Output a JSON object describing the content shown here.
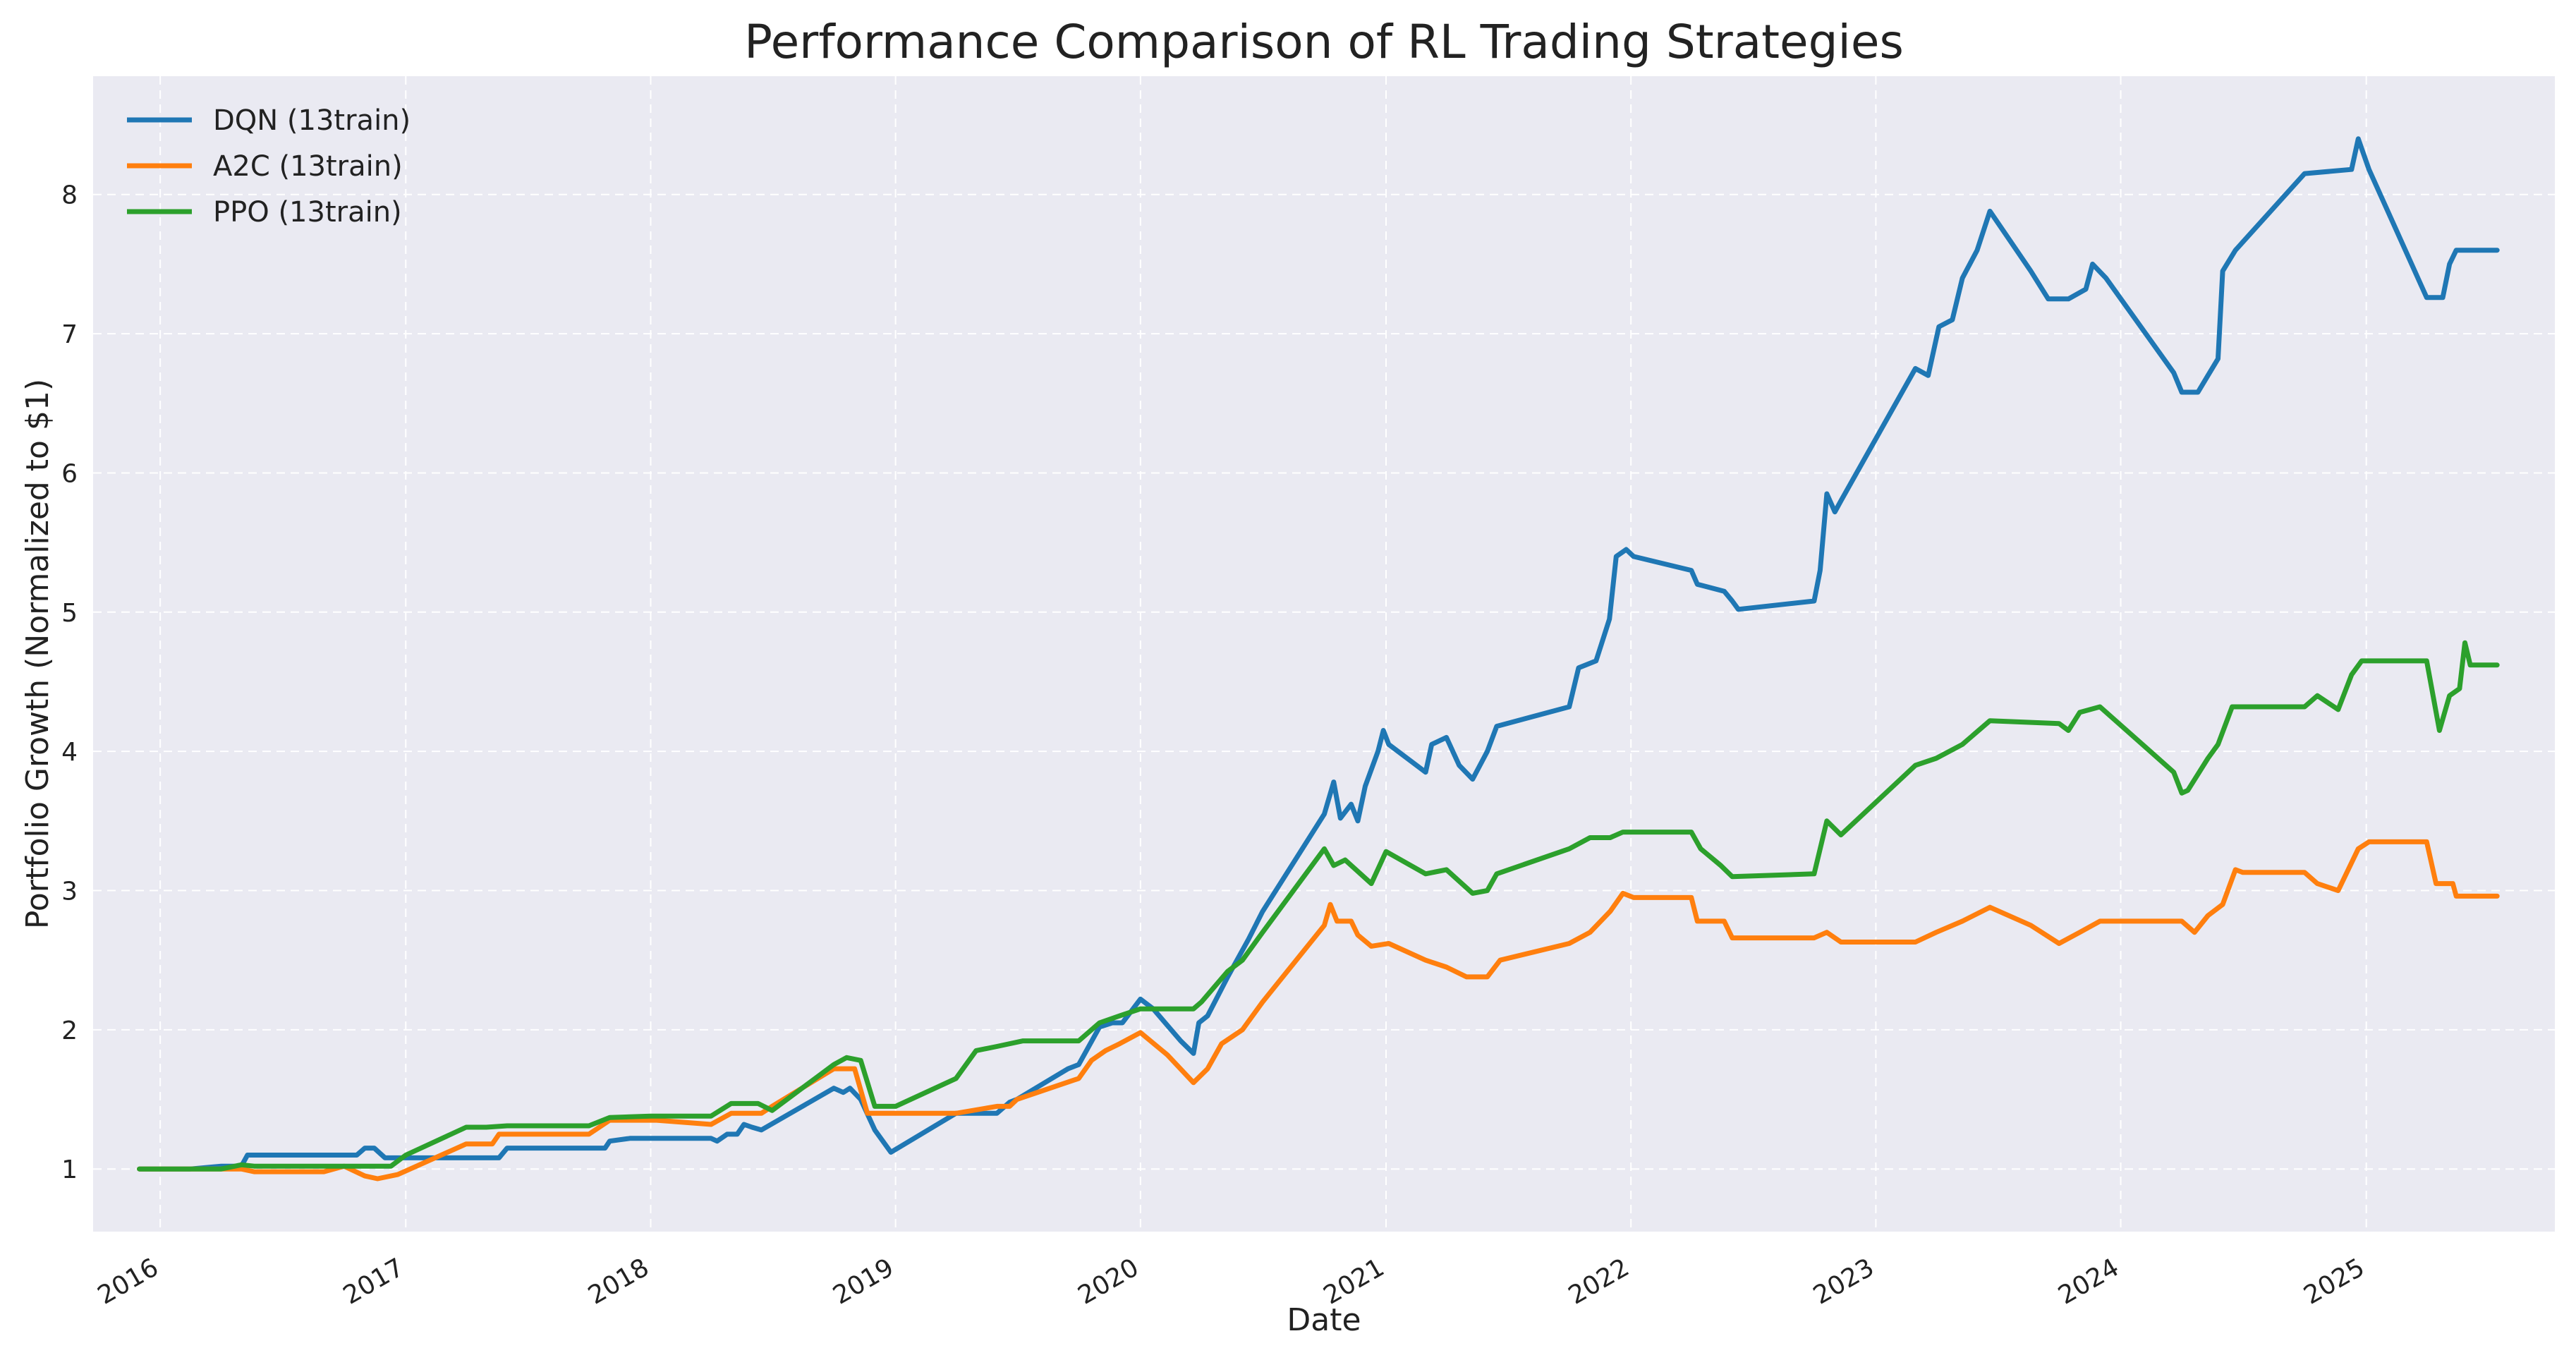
{
  "chart_data": {
    "type": "line",
    "title": "Performance Comparison of RL Trading Strategies",
    "xlabel": "Date",
    "ylabel": "Portfolio Growth (Normalized to $1)",
    "xlim": [
      "2015-09-23",
      "2025-10-09"
    ],
    "ylim": [
      0.55,
      8.85
    ],
    "x_ticks": [
      "2016",
      "2017",
      "2018",
      "2019",
      "2020",
      "2021",
      "2022",
      "2023",
      "2024",
      "2025"
    ],
    "y_ticks": [
      1,
      2,
      3,
      4,
      5,
      6,
      7,
      8
    ],
    "grid": true,
    "legend": "top-left",
    "colors": {
      "background": "#eaeaf2",
      "grid": "#ffffff"
    },
    "series": [
      {
        "name": "DQN (13train)",
        "color": "#1f77b4",
        "points": [
          [
            "2015-12-01",
            1.0
          ],
          [
            "2016-02-15",
            1.0
          ],
          [
            "2016-04-01",
            1.02
          ],
          [
            "2016-05-01",
            1.02
          ],
          [
            "2016-05-10",
            1.1
          ],
          [
            "2016-10-20",
            1.1
          ],
          [
            "2016-11-01",
            1.15
          ],
          [
            "2016-11-15",
            1.15
          ],
          [
            "2016-12-01",
            1.08
          ],
          [
            "2017-03-10",
            1.08
          ],
          [
            "2017-04-01",
            1.08
          ],
          [
            "2017-05-20",
            1.08
          ],
          [
            "2017-06-01",
            1.15
          ],
          [
            "2017-09-15",
            1.15
          ],
          [
            "2017-10-25",
            1.15
          ],
          [
            "2017-11-01",
            1.2
          ],
          [
            "2017-12-01",
            1.22
          ],
          [
            "2018-04-01",
            1.22
          ],
          [
            "2018-04-10",
            1.2
          ],
          [
            "2018-04-25",
            1.25
          ],
          [
            "2018-05-10",
            1.25
          ],
          [
            "2018-05-20",
            1.32
          ],
          [
            "2018-06-01",
            1.3
          ],
          [
            "2018-06-15",
            1.28
          ],
          [
            "2018-10-01",
            1.58
          ],
          [
            "2018-10-15",
            1.55
          ],
          [
            "2018-10-25",
            1.58
          ],
          [
            "2018-11-10",
            1.5
          ],
          [
            "2018-12-01",
            1.28
          ],
          [
            "2018-12-25",
            1.12
          ],
          [
            "2019-04-01",
            1.4
          ],
          [
            "2019-06-01",
            1.4
          ],
          [
            "2019-06-20",
            1.48
          ],
          [
            "2019-07-01",
            1.5
          ],
          [
            "2019-09-15",
            1.72
          ],
          [
            "2019-10-01",
            1.75
          ],
          [
            "2019-11-01",
            2.02
          ],
          [
            "2019-11-20",
            2.05
          ],
          [
            "2019-12-05",
            2.05
          ],
          [
            "2020-01-01",
            2.22
          ],
          [
            "2020-01-20",
            2.15
          ],
          [
            "2020-03-01",
            1.92
          ],
          [
            "2020-03-20",
            1.83
          ],
          [
            "2020-03-28",
            2.05
          ],
          [
            "2020-04-10",
            2.1
          ],
          [
            "2020-05-10",
            2.38
          ],
          [
            "2020-06-10",
            2.65
          ],
          [
            "2020-07-01",
            2.85
          ],
          [
            "2020-10-01",
            3.55
          ],
          [
            "2020-10-15",
            3.78
          ],
          [
            "2020-10-25",
            3.52
          ],
          [
            "2020-11-10",
            3.62
          ],
          [
            "2020-11-20",
            3.5
          ],
          [
            "2020-12-01",
            3.75
          ],
          [
            "2020-12-20",
            4.0
          ],
          [
            "2020-12-28",
            4.15
          ],
          [
            "2021-01-05",
            4.05
          ],
          [
            "2021-03-01",
            3.85
          ],
          [
            "2021-03-10",
            4.05
          ],
          [
            "2021-04-01",
            4.1
          ],
          [
            "2021-04-20",
            3.9
          ],
          [
            "2021-05-10",
            3.8
          ],
          [
            "2021-06-01",
            4.0
          ],
          [
            "2021-06-15",
            4.18
          ],
          [
            "2021-10-01",
            4.32
          ],
          [
            "2021-10-15",
            4.6
          ],
          [
            "2021-11-10",
            4.65
          ],
          [
            "2021-11-30",
            4.95
          ],
          [
            "2021-12-10",
            5.4
          ],
          [
            "2021-12-25",
            5.45
          ],
          [
            "2022-01-05",
            5.4
          ],
          [
            "2022-04-01",
            5.3
          ],
          [
            "2022-04-10",
            5.2
          ],
          [
            "2022-05-20",
            5.15
          ],
          [
            "2022-06-01",
            5.08
          ],
          [
            "2022-06-10",
            5.02
          ],
          [
            "2022-10-01",
            5.08
          ],
          [
            "2022-10-10",
            5.3
          ],
          [
            "2022-10-20",
            5.85
          ],
          [
            "2022-11-01",
            5.72
          ],
          [
            "2022-11-10",
            5.8
          ],
          [
            "2023-03-01",
            6.75
          ],
          [
            "2023-03-20",
            6.7
          ],
          [
            "2023-04-05",
            7.05
          ],
          [
            "2023-04-25",
            7.1
          ],
          [
            "2023-05-10",
            7.4
          ],
          [
            "2023-06-01",
            7.6
          ],
          [
            "2023-06-20",
            7.88
          ],
          [
            "2023-08-20",
            7.45
          ],
          [
            "2023-09-15",
            7.25
          ],
          [
            "2023-10-15",
            7.25
          ],
          [
            "2023-11-10",
            7.32
          ],
          [
            "2023-11-20",
            7.5
          ],
          [
            "2023-12-10",
            7.4
          ],
          [
            "2024-03-20",
            6.72
          ],
          [
            "2024-04-01",
            6.58
          ],
          [
            "2024-04-25",
            6.58
          ],
          [
            "2024-05-10",
            6.7
          ],
          [
            "2024-05-25",
            6.82
          ],
          [
            "2024-06-01",
            7.45
          ],
          [
            "2024-06-20",
            7.6
          ],
          [
            "2024-10-01",
            8.15
          ],
          [
            "2024-12-10",
            8.18
          ],
          [
            "2024-12-20",
            8.4
          ],
          [
            "2025-01-05",
            8.18
          ],
          [
            "2025-04-01",
            7.26
          ],
          [
            "2025-04-25",
            7.26
          ],
          [
            "2025-05-05",
            7.5
          ],
          [
            "2025-05-15",
            7.6
          ],
          [
            "2025-07-15",
            7.6
          ]
        ]
      },
      {
        "name": "A2C (13train)",
        "color": "#ff7f0e",
        "points": [
          [
            "2015-12-01",
            1.0
          ],
          [
            "2016-04-01",
            1.0
          ],
          [
            "2016-05-01",
            1.0
          ],
          [
            "2016-05-20",
            0.98
          ],
          [
            "2016-09-01",
            0.98
          ],
          [
            "2016-10-01",
            1.02
          ],
          [
            "2016-11-01",
            0.95
          ],
          [
            "2016-11-20",
            0.93
          ],
          [
            "2016-12-20",
            0.96
          ],
          [
            "2017-04-01",
            1.18
          ],
          [
            "2017-05-10",
            1.18
          ],
          [
            "2017-05-20",
            1.25
          ],
          [
            "2017-10-01",
            1.25
          ],
          [
            "2017-11-01",
            1.35
          ],
          [
            "2017-12-01",
            1.35
          ],
          [
            "2018-01-10",
            1.35
          ],
          [
            "2018-04-01",
            1.32
          ],
          [
            "2018-05-01",
            1.4
          ],
          [
            "2018-06-15",
            1.4
          ],
          [
            "2018-07-01",
            1.45
          ],
          [
            "2018-10-01",
            1.72
          ],
          [
            "2018-11-01",
            1.72
          ],
          [
            "2018-11-20",
            1.4
          ],
          [
            "2019-04-01",
            1.4
          ],
          [
            "2019-06-01",
            1.45
          ],
          [
            "2019-06-20",
            1.45
          ],
          [
            "2019-07-01",
            1.5
          ],
          [
            "2019-10-01",
            1.65
          ],
          [
            "2019-10-20",
            1.78
          ],
          [
            "2019-11-10",
            1.85
          ],
          [
            "2019-12-01",
            1.9
          ],
          [
            "2020-01-01",
            1.98
          ],
          [
            "2020-02-10",
            1.82
          ],
          [
            "2020-03-20",
            1.62
          ],
          [
            "2020-04-10",
            1.72
          ],
          [
            "2020-05-01",
            1.9
          ],
          [
            "2020-06-01",
            2.0
          ],
          [
            "2020-07-01",
            2.2
          ],
          [
            "2020-10-01",
            2.75
          ],
          [
            "2020-10-10",
            2.9
          ],
          [
            "2020-10-20",
            2.78
          ],
          [
            "2020-11-10",
            2.78
          ],
          [
            "2020-11-20",
            2.68
          ],
          [
            "2020-12-10",
            2.6
          ],
          [
            "2021-01-05",
            2.62
          ],
          [
            "2021-03-01",
            2.5
          ],
          [
            "2021-04-01",
            2.45
          ],
          [
            "2021-05-01",
            2.38
          ],
          [
            "2021-06-01",
            2.38
          ],
          [
            "2021-06-20",
            2.5
          ],
          [
            "2021-10-01",
            2.62
          ],
          [
            "2021-11-01",
            2.7
          ],
          [
            "2021-12-01",
            2.85
          ],
          [
            "2021-12-20",
            2.98
          ],
          [
            "2022-01-05",
            2.95
          ],
          [
            "2022-04-01",
            2.95
          ],
          [
            "2022-04-10",
            2.78
          ],
          [
            "2022-05-20",
            2.78
          ],
          [
            "2022-06-01",
            2.66
          ],
          [
            "2022-10-01",
            2.66
          ],
          [
            "2022-10-20",
            2.7
          ],
          [
            "2022-11-10",
            2.63
          ],
          [
            "2023-02-01",
            2.63
          ],
          [
            "2023-03-01",
            2.63
          ],
          [
            "2023-04-01",
            2.7
          ],
          [
            "2023-05-10",
            2.78
          ],
          [
            "2023-06-20",
            2.88
          ],
          [
            "2023-08-20",
            2.75
          ],
          [
            "2023-10-01",
            2.62
          ],
          [
            "2023-11-01",
            2.7
          ],
          [
            "2023-12-01",
            2.78
          ],
          [
            "2024-04-01",
            2.78
          ],
          [
            "2024-04-20",
            2.7
          ],
          [
            "2024-05-10",
            2.82
          ],
          [
            "2024-06-01",
            2.9
          ],
          [
            "2024-06-20",
            3.15
          ],
          [
            "2024-07-01",
            3.13
          ],
          [
            "2024-10-01",
            3.13
          ],
          [
            "2024-10-20",
            3.05
          ],
          [
            "2024-11-20",
            3.0
          ],
          [
            "2024-12-20",
            3.3
          ],
          [
            "2025-01-05",
            3.35
          ],
          [
            "2025-04-01",
            3.35
          ],
          [
            "2025-04-15",
            3.05
          ],
          [
            "2025-05-10",
            3.05
          ],
          [
            "2025-05-15",
            2.96
          ],
          [
            "2025-07-15",
            2.96
          ]
        ]
      },
      {
        "name": "PPO (13train)",
        "color": "#2ca02c",
        "points": [
          [
            "2015-12-01",
            1.0
          ],
          [
            "2016-04-01",
            1.0
          ],
          [
            "2016-05-01",
            1.03
          ],
          [
            "2016-05-20",
            1.02
          ],
          [
            "2016-12-10",
            1.02
          ],
          [
            "2017-01-01",
            1.1
          ],
          [
            "2017-04-01",
            1.3
          ],
          [
            "2017-05-01",
            1.3
          ],
          [
            "2017-06-01",
            1.31
          ],
          [
            "2017-10-01",
            1.31
          ],
          [
            "2017-11-01",
            1.37
          ],
          [
            "2018-01-01",
            1.38
          ],
          [
            "2018-04-01",
            1.38
          ],
          [
            "2018-05-01",
            1.47
          ],
          [
            "2018-06-10",
            1.47
          ],
          [
            "2018-07-01",
            1.42
          ],
          [
            "2018-10-01",
            1.75
          ],
          [
            "2018-10-20",
            1.8
          ],
          [
            "2018-11-10",
            1.78
          ],
          [
            "2018-12-01",
            1.45
          ],
          [
            "2019-01-01",
            1.45
          ],
          [
            "2019-04-01",
            1.65
          ],
          [
            "2019-05-01",
            1.85
          ],
          [
            "2019-06-01",
            1.88
          ],
          [
            "2019-07-10",
            1.92
          ],
          [
            "2019-10-01",
            1.92
          ],
          [
            "2019-11-01",
            2.05
          ],
          [
            "2019-12-01",
            2.1
          ],
          [
            "2020-01-01",
            2.15
          ],
          [
            "2020-03-20",
            2.15
          ],
          [
            "2020-04-01",
            2.2
          ],
          [
            "2020-05-10",
            2.42
          ],
          [
            "2020-06-01",
            2.5
          ],
          [
            "2020-07-01",
            2.7
          ],
          [
            "2020-10-01",
            3.3
          ],
          [
            "2020-10-15",
            3.18
          ],
          [
            "2020-11-01",
            3.22
          ],
          [
            "2020-12-10",
            3.05
          ],
          [
            "2021-01-01",
            3.28
          ],
          [
            "2021-03-01",
            3.12
          ],
          [
            "2021-04-01",
            3.15
          ],
          [
            "2021-05-10",
            2.98
          ],
          [
            "2021-06-01",
            3.0
          ],
          [
            "2021-06-15",
            3.12
          ],
          [
            "2021-10-01",
            3.3
          ],
          [
            "2021-11-01",
            3.38
          ],
          [
            "2021-12-01",
            3.38
          ],
          [
            "2021-12-20",
            3.42
          ],
          [
            "2022-01-05",
            3.42
          ],
          [
            "2022-04-01",
            3.42
          ],
          [
            "2022-04-15",
            3.3
          ],
          [
            "2022-05-15",
            3.18
          ],
          [
            "2022-06-01",
            3.1
          ],
          [
            "2022-10-01",
            3.12
          ],
          [
            "2022-10-20",
            3.5
          ],
          [
            "2022-11-10",
            3.4
          ],
          [
            "2023-03-01",
            3.9
          ],
          [
            "2023-04-01",
            3.95
          ],
          [
            "2023-05-10",
            4.05
          ],
          [
            "2023-06-20",
            4.22
          ],
          [
            "2023-10-01",
            4.2
          ],
          [
            "2023-10-15",
            4.15
          ],
          [
            "2023-11-01",
            4.28
          ],
          [
            "2023-12-01",
            4.32
          ],
          [
            "2024-03-20",
            3.85
          ],
          [
            "2024-04-01",
            3.7
          ],
          [
            "2024-04-10",
            3.72
          ],
          [
            "2024-05-10",
            3.95
          ],
          [
            "2024-05-25",
            4.05
          ],
          [
            "2024-06-15",
            4.32
          ],
          [
            "2024-10-01",
            4.32
          ],
          [
            "2024-10-20",
            4.4
          ],
          [
            "2024-11-20",
            4.3
          ],
          [
            "2024-12-10",
            4.55
          ],
          [
            "2024-12-25",
            4.65
          ],
          [
            "2025-04-01",
            4.65
          ],
          [
            "2025-04-20",
            4.15
          ],
          [
            "2025-05-05",
            4.4
          ],
          [
            "2025-05-20",
            4.45
          ],
          [
            "2025-05-28",
            4.78
          ],
          [
            "2025-06-05",
            4.62
          ],
          [
            "2025-07-15",
            4.62
          ]
        ]
      }
    ]
  }
}
